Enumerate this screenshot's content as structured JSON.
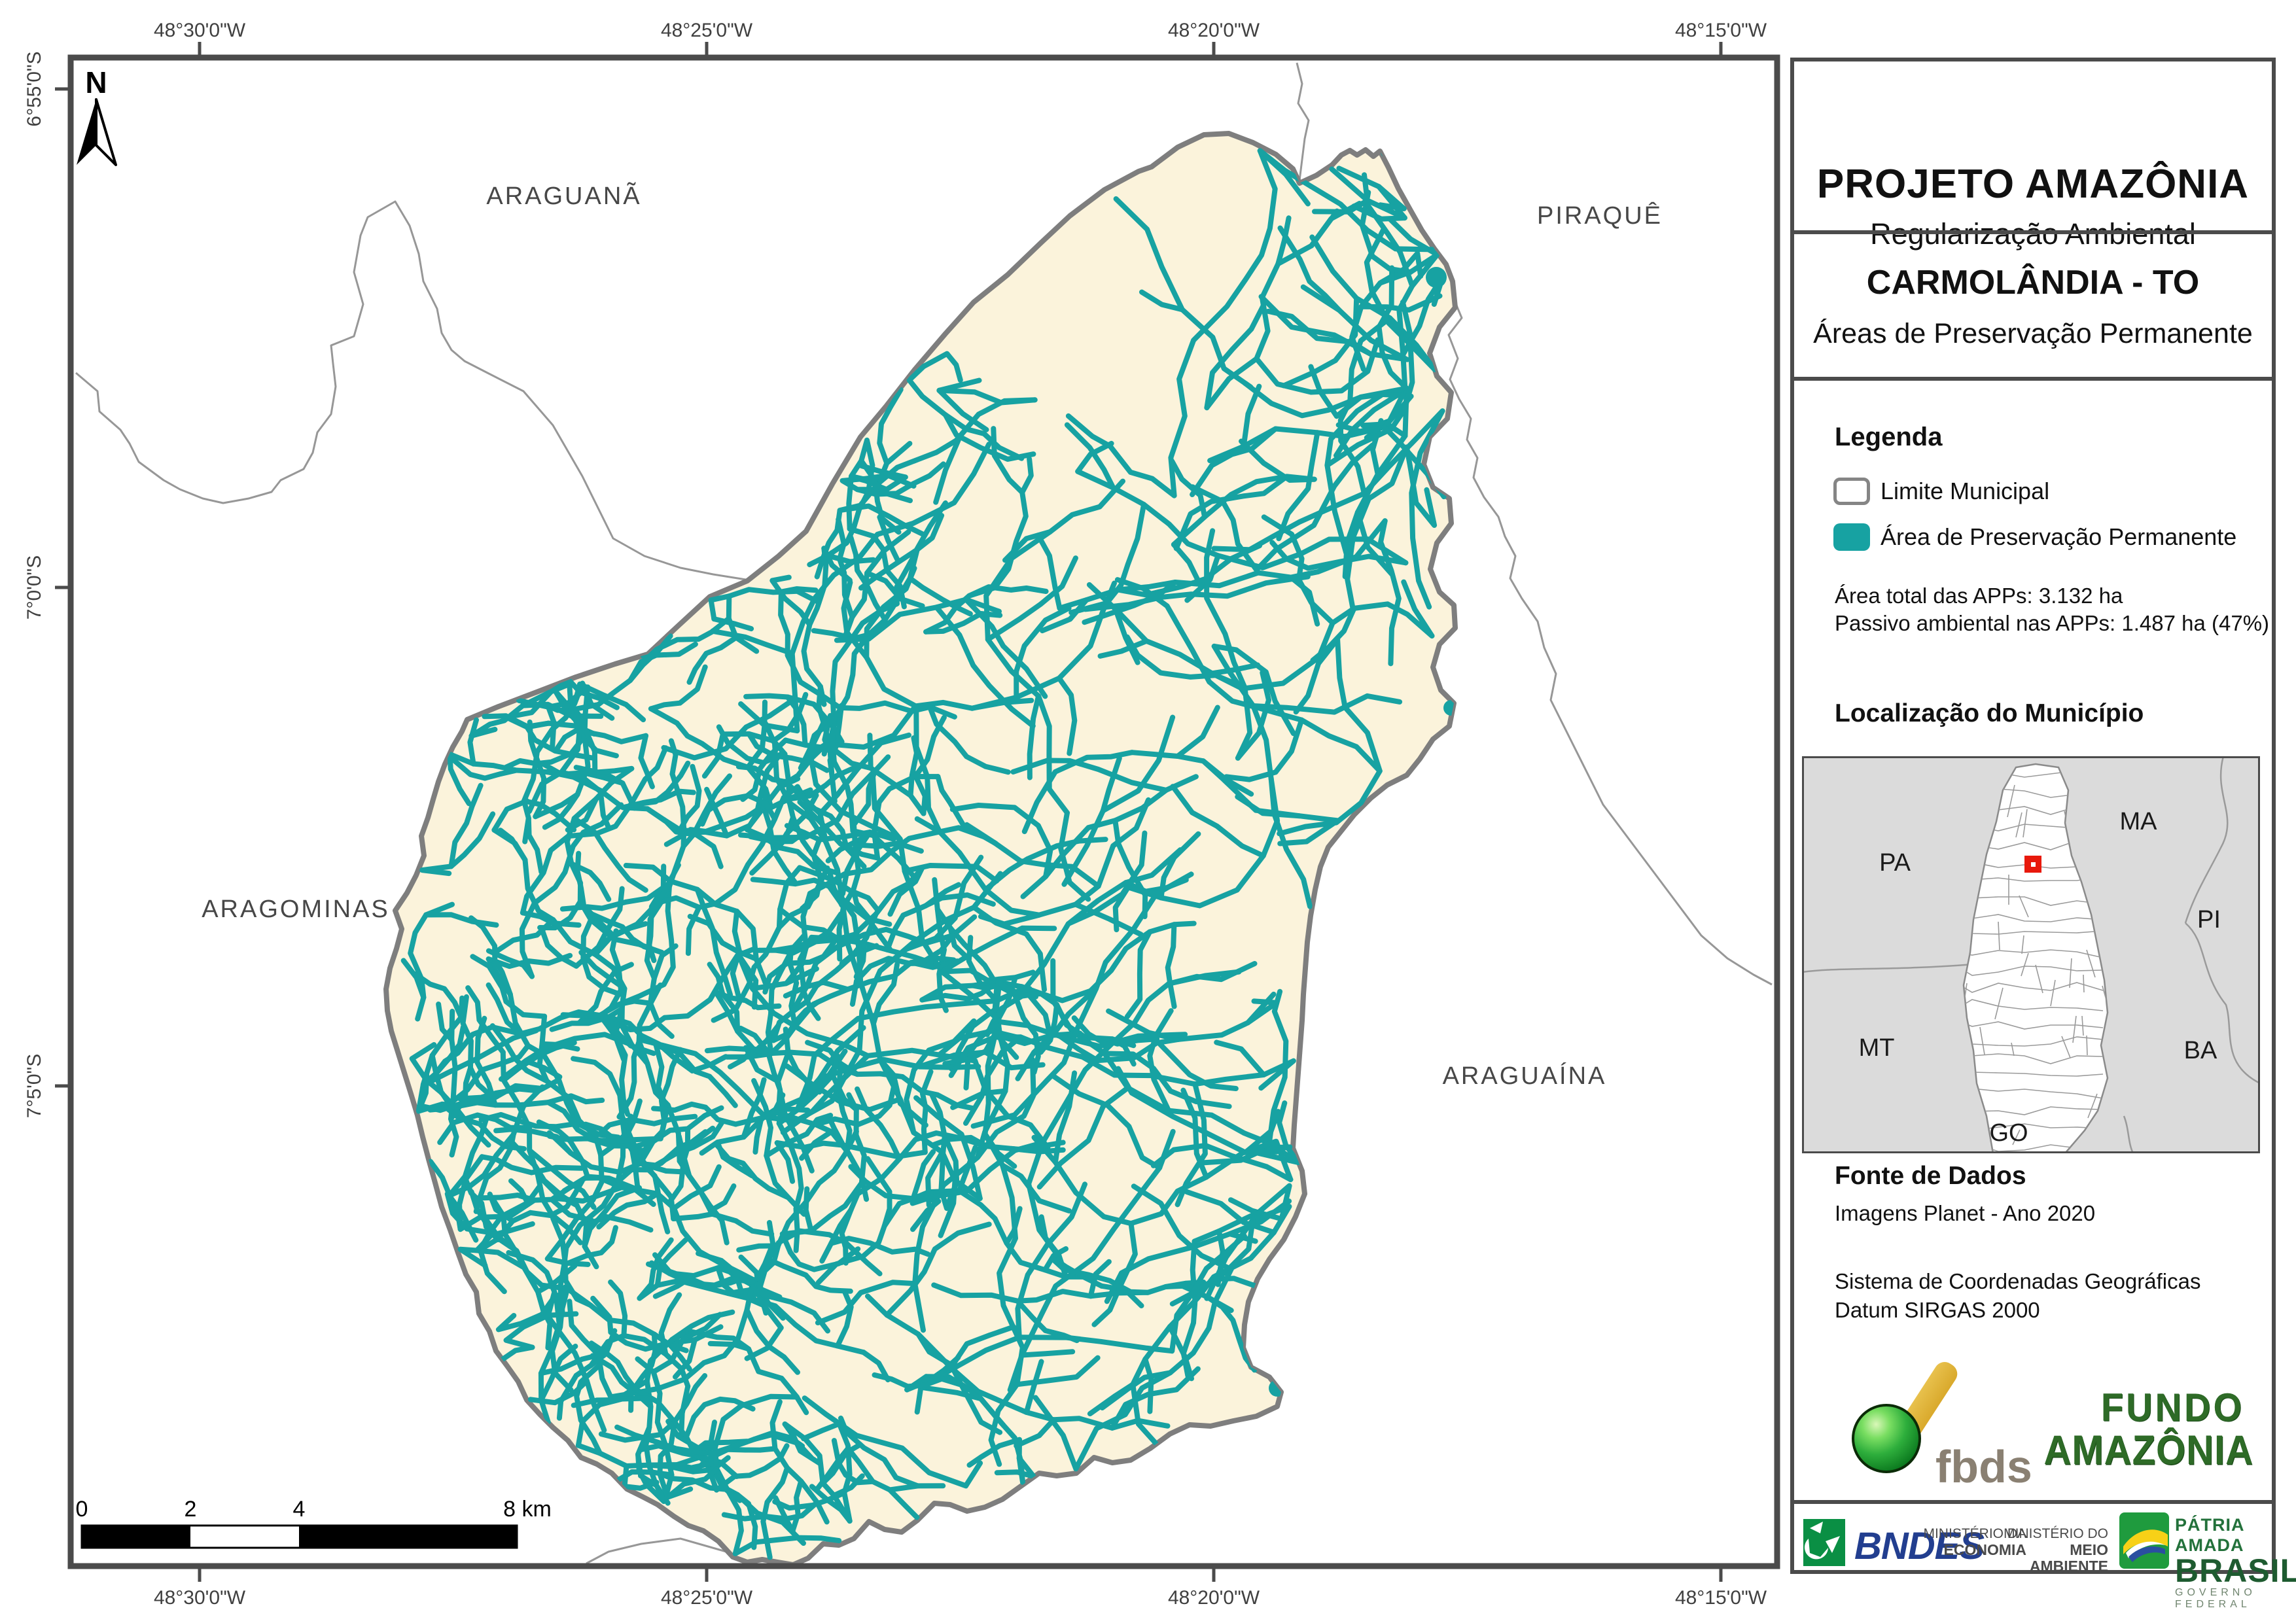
{
  "header": {
    "title": "PROJETO AMAZÔNIA",
    "subtitle": "Regularização Ambiental"
  },
  "municipality": {
    "name": "CARMOLÂNDIA - TO",
    "map_title": "Áreas de Preservação Permanente"
  },
  "legend": {
    "heading": "Legenda",
    "items": [
      {
        "label": "Limite Municipal",
        "swatch": "outline"
      },
      {
        "label": "Área de Preservação Permanente",
        "swatch": "filled-teal"
      }
    ],
    "stats": [
      "Área total das APPs: 3.132 ha",
      "Passivo ambiental nas APPs: 1.487 ha (47%)"
    ]
  },
  "location": {
    "heading": "Localização do Município",
    "states": [
      "PA",
      "MA",
      "PI",
      "MT",
      "BA",
      "GO"
    ]
  },
  "data_source": {
    "heading": "Fonte de Dados",
    "lines": [
      "Imagens Planet - Ano 2020",
      "Sistema de Coordenadas Geográficas",
      "Datum SIRGAS 2000"
    ]
  },
  "map": {
    "north_label": "N",
    "neighbor_labels": [
      "ARAGUANÃ",
      "PIRAQUÊ",
      "ARAGOMINAS",
      "ARAGUAÍNA"
    ],
    "top_coords": [
      "48°30'0\"W",
      "48°25'0\"W",
      "48°20'0\"W",
      "48°15'0\"W"
    ],
    "bottom_coords": [
      "48°30'0\"W",
      "48°25'0\"W",
      "48°20'0\"W",
      "48°15'0\"W"
    ],
    "left_coords": [
      "6°55'0\"S",
      "7°0'0\"S",
      "7°5'0\"S"
    ],
    "scale_labels": [
      "0",
      "2",
      "4",
      "8 km"
    ]
  },
  "logos": {
    "fbds": "fbds",
    "fundo_amazonia": [
      "FUNDO",
      "AMAZÔNIA"
    ],
    "bndes": "BNDES",
    "ministries": [
      [
        "MINISTÉRIO DA",
        "ECONOMIA"
      ],
      [
        "MINISTÉRIO DO",
        "MEIO AMBIENTE"
      ]
    ],
    "brasil": {
      "line1": "PÁTRIA AMADA",
      "line2": "BRASIL",
      "line3": "GOVERNO FEDERAL"
    }
  },
  "colors": {
    "app_teal": "#17A2A2",
    "municipality_fill": "#FBF3DB",
    "municipality_border": "#7E7E7E",
    "neighbor_line": "#979797",
    "frame": "#4B4B4B",
    "inset_bg": "#DBDBDB",
    "marker_red": "#E8190C",
    "label_gray": "#474747"
  }
}
